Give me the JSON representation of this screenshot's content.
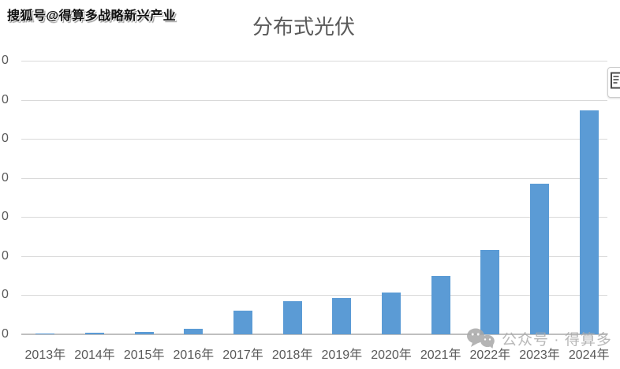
{
  "watermarks": {
    "top_left": "搜狐号@得算多战略新兴产业",
    "bottom_right_text": "公众号 · 得算多",
    "bottom_right_icon": "wechat-icon"
  },
  "side_button": {
    "icon": "chart-tool-icon",
    "note": "small floating button clipped at right edge of screenshot"
  },
  "chart_data": {
    "type": "bar",
    "title": "分布式光伏",
    "categories": [
      "2013年",
      "2014年",
      "2015年",
      "2016年",
      "2017年",
      "2018年",
      "2019年",
      "2020年",
      "2021年",
      "2022年",
      "2023年",
      "2024年"
    ],
    "values": [
      30,
      100,
      140,
      300,
      1200,
      1700,
      1870,
      2150,
      2990,
      4300,
      7710,
      11460
    ],
    "xlabel": "",
    "ylabel": "",
    "ylim": [
      0,
      14000
    ],
    "y_tick_interval": 2000,
    "y_tick_label_visible_fragment": "0",
    "y_tick_labels_note": "y-axis numbers are clipped by the left image edge; only the trailing 0 of each tick label is visible",
    "grid": true,
    "legend": false,
    "bar_color": "#5B9BD5",
    "gridline_color": "#D9D9D9",
    "axis_line_color": "#BFBFBF",
    "title_color": "#595959",
    "tick_label_color": "#595959"
  }
}
